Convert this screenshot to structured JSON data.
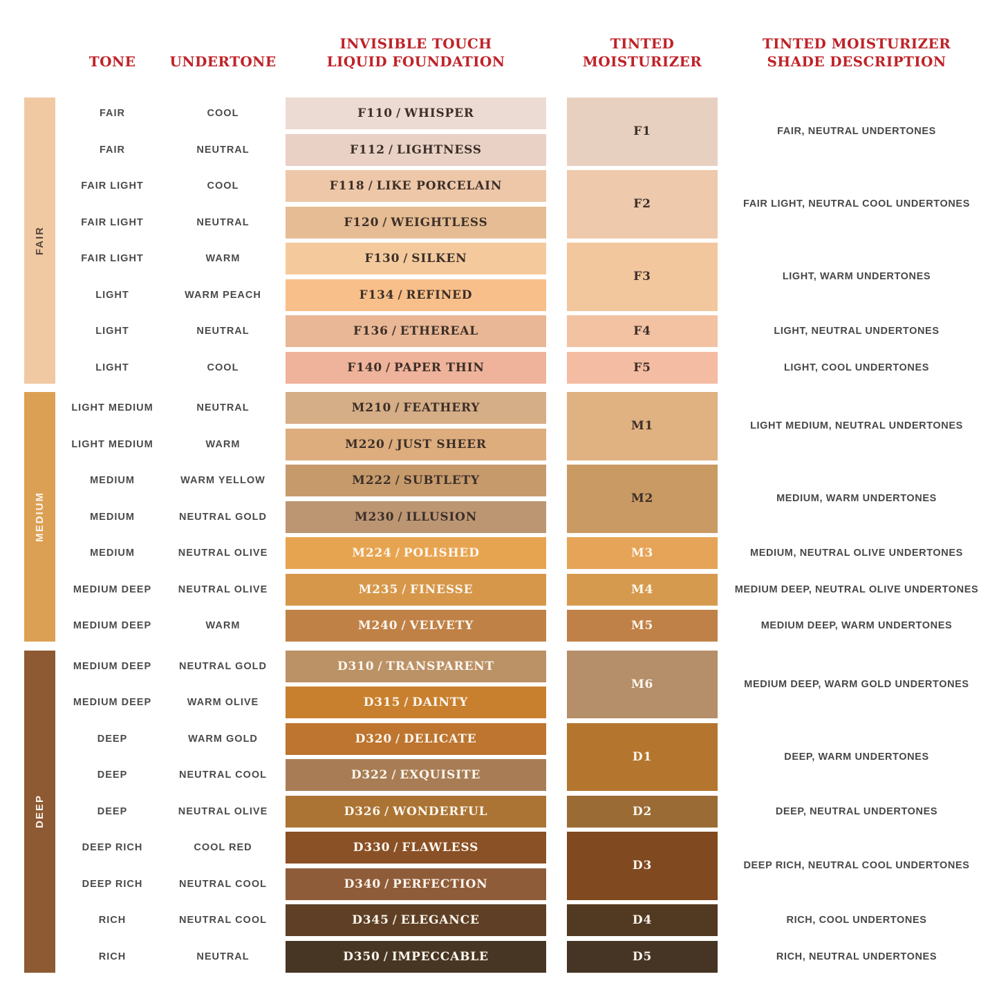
{
  "headers": {
    "tone": "TONE",
    "undertone": "UNDERTONE",
    "foundation_line1": "INVISIBLE TOUCH",
    "foundation_line2": "LIQUID FOUNDATION",
    "moisturizer_line1": "TINTED",
    "moisturizer_line2": "MOISTURIZER",
    "description_line1": "TINTED MOISTURIZER",
    "description_line2": "SHADE DESCRIPTION"
  },
  "colors": {
    "header_red": "#bf2228",
    "dark_label": "#4a4a4a",
    "swatch_dark_text": "#3c2f28",
    "swatch_light_text": "#fdf7ef"
  },
  "chart_data": {
    "type": "table",
    "separator": "/",
    "columns": [
      "TONE",
      "UNDERTONE",
      "INVISIBLE TOUCH LIQUID FOUNDATION",
      "TINTED MOISTURIZER",
      "TINTED MOISTURIZER SHADE DESCRIPTION"
    ],
    "tone_groups": [
      {
        "label": "FAIR",
        "color": "#f0c9a3",
        "label_color": "#54453e",
        "row_start": 0,
        "row_end": 7
      },
      {
        "label": "MEDIUM",
        "color": "#dca055",
        "label_color": "#fdf7ef",
        "row_start": 8,
        "row_end": 14
      },
      {
        "label": "DEEP",
        "color": "#8d5a33",
        "label_color": "#fdf7ef",
        "row_start": 15,
        "row_end": 23
      }
    ],
    "foundation_rows": [
      {
        "tone": "FAIR",
        "undertone": "COOL",
        "code": "F110",
        "name": "WHISPER",
        "color": "#ecdbd3",
        "label_color": "#3c2f28"
      },
      {
        "tone": "FAIR",
        "undertone": "NEUTRAL",
        "code": "F112",
        "name": "LIGHTNESS",
        "color": "#e9d1c5",
        "label_color": "#3c2f28"
      },
      {
        "tone": "FAIR LIGHT",
        "undertone": "COOL",
        "code": "F118",
        "name": "LIKE PORCELAIN",
        "color": "#eec7a9",
        "label_color": "#3c2f28"
      },
      {
        "tone": "FAIR LIGHT",
        "undertone": "NEUTRAL",
        "code": "F120",
        "name": "WEIGHTLESS",
        "color": "#e5bc93",
        "label_color": "#3c2f28"
      },
      {
        "tone": "FAIR LIGHT",
        "undertone": "WARM",
        "code": "F130",
        "name": "SILKEN",
        "color": "#f4ca9d",
        "label_color": "#3c2f28"
      },
      {
        "tone": "LIGHT",
        "undertone": "WARM PEACH",
        "code": "F134",
        "name": "REFINED",
        "color": "#f8bf8a",
        "label_color": "#3c2f28"
      },
      {
        "tone": "LIGHT",
        "undertone": "NEUTRAL",
        "code": "F136",
        "name": "ETHEREAL",
        "color": "#e9b795",
        "label_color": "#3c2f28"
      },
      {
        "tone": "LIGHT",
        "undertone": "COOL",
        "code": "F140",
        "name": "PAPER THIN",
        "color": "#eeb39a",
        "label_color": "#3c2f28"
      },
      {
        "tone": "LIGHT MEDIUM",
        "undertone": "NEUTRAL",
        "code": "M210",
        "name": "FEATHERY",
        "color": "#d5ad86",
        "label_color": "#3c2f28"
      },
      {
        "tone": "LIGHT MEDIUM",
        "undertone": "WARM",
        "code": "M220",
        "name": "JUST SHEER",
        "color": "#ddad7e",
        "label_color": "#3c2f28"
      },
      {
        "tone": "MEDIUM",
        "undertone": "WARM YELLOW",
        "code": "M222",
        "name": "SUBTLETY",
        "color": "#c79a6c",
        "label_color": "#3c2f28"
      },
      {
        "tone": "MEDIUM",
        "undertone": "NEUTRAL GOLD",
        "code": "M230",
        "name": "ILLUSION",
        "color": "#bc9673",
        "label_color": "#3c2f28"
      },
      {
        "tone": "MEDIUM",
        "undertone": "NEUTRAL OLIVE",
        "code": "M224",
        "name": "POLISHED",
        "color": "#e7a450",
        "label_color": "#fdf7ef"
      },
      {
        "tone": "MEDIUM DEEP",
        "undertone": "NEUTRAL OLIVE",
        "code": "M235",
        "name": "FINESSE",
        "color": "#d6974a",
        "label_color": "#fdf7ef"
      },
      {
        "tone": "MEDIUM DEEP",
        "undertone": "WARM",
        "code": "M240",
        "name": "VELVETY",
        "color": "#c08147",
        "label_color": "#fdf7ef"
      },
      {
        "tone": "MEDIUM DEEP",
        "undertone": "NEUTRAL GOLD",
        "code": "D310",
        "name": "TRANSPARENT",
        "color": "#bb9166",
        "label_color": "#fdf7ef"
      },
      {
        "tone": "MEDIUM DEEP",
        "undertone": "WARM OLIVE",
        "code": "D315",
        "name": "DAINTY",
        "color": "#c8802e",
        "label_color": "#fdf7ef"
      },
      {
        "tone": "DEEP",
        "undertone": "WARM GOLD",
        "code": "D320",
        "name": "DELICATE",
        "color": "#bd752f",
        "label_color": "#fdf7ef"
      },
      {
        "tone": "DEEP",
        "undertone": "NEUTRAL COOL",
        "code": "D322",
        "name": "EXQUISITE",
        "color": "#a87d55",
        "label_color": "#fdf7ef"
      },
      {
        "tone": "DEEP",
        "undertone": "NEUTRAL OLIVE",
        "code": "D326",
        "name": "WONDERFUL",
        "color": "#ab7434",
        "label_color": "#fdf7ef"
      },
      {
        "tone": "DEEP RICH",
        "undertone": "COOL RED",
        "code": "D330",
        "name": "FLAWLESS",
        "color": "#8a5026",
        "label_color": "#fdf7ef"
      },
      {
        "tone": "DEEP RICH",
        "undertone": "NEUTRAL COOL",
        "code": "D340",
        "name": "PERFECTION",
        "color": "#8f5c39",
        "label_color": "#fdf7ef"
      },
      {
        "tone": "RICH",
        "undertone": "NEUTRAL COOL",
        "code": "D345",
        "name": "ELEGANCE",
        "color": "#5f4026",
        "label_color": "#fdf7ef"
      },
      {
        "tone": "RICH",
        "undertone": "NEUTRAL",
        "code": "D350",
        "name": "IMPECCABLE",
        "color": "#483624",
        "label_color": "#fdf7ef"
      }
    ],
    "moisturizer_groups": [
      {
        "code": "F1",
        "color": "#e8d0c1",
        "label_color": "#3c2f28",
        "row_start": 0,
        "row_end": 1,
        "description": "FAIR, NEUTRAL UNDERTONES"
      },
      {
        "code": "F2",
        "color": "#eec9ab",
        "label_color": "#3c2f28",
        "row_start": 2,
        "row_end": 3,
        "description": "FAIR LIGHT, NEUTRAL COOL UNDERTONES"
      },
      {
        "code": "F3",
        "color": "#f3c79d",
        "label_color": "#3c2f28",
        "row_start": 4,
        "row_end": 5,
        "description": "LIGHT, WARM UNDERTONES"
      },
      {
        "code": "F4",
        "color": "#f2c2a3",
        "label_color": "#3c2f28",
        "row_start": 6,
        "row_end": 6,
        "description": "LIGHT, NEUTRAL UNDERTONES"
      },
      {
        "code": "F5",
        "color": "#f4bca3",
        "label_color": "#3c2f28",
        "row_start": 7,
        "row_end": 7,
        "description": "LIGHT, COOL UNDERTONES"
      },
      {
        "code": "M1",
        "color": "#e0b181",
        "label_color": "#3c2f28",
        "row_start": 8,
        "row_end": 9,
        "description": "LIGHT MEDIUM, NEUTRAL UNDERTONES"
      },
      {
        "code": "M2",
        "color": "#c99a64",
        "label_color": "#3c2f28",
        "row_start": 10,
        "row_end": 11,
        "description": "MEDIUM, WARM UNDERTONES"
      },
      {
        "code": "M3",
        "color": "#e5a457",
        "label_color": "#fdf7ef",
        "row_start": 12,
        "row_end": 12,
        "description": "MEDIUM, NEUTRAL OLIVE UNDERTONES"
      },
      {
        "code": "M4",
        "color": "#d69a4e",
        "label_color": "#fdf7ef",
        "row_start": 13,
        "row_end": 13,
        "description": "MEDIUM DEEP, NEUTRAL OLIVE UNDERTONES"
      },
      {
        "code": "M5",
        "color": "#c08148",
        "label_color": "#fdf7ef",
        "row_start": 14,
        "row_end": 14,
        "description": "MEDIUM DEEP, WARM UNDERTONES"
      },
      {
        "code": "M6",
        "color": "#b58f69",
        "label_color": "#fdf7ef",
        "row_start": 15,
        "row_end": 16,
        "description": "MEDIUM DEEP, WARM GOLD UNDERTONES"
      },
      {
        "code": "D1",
        "color": "#b4762f",
        "label_color": "#fdf7ef",
        "row_start": 17,
        "row_end": 18,
        "description": "DEEP, WARM UNDERTONES"
      },
      {
        "code": "D2",
        "color": "#9a6b35",
        "label_color": "#fdf7ef",
        "row_start": 19,
        "row_end": 19,
        "description": "DEEP, NEUTRAL UNDERTONES"
      },
      {
        "code": "D3",
        "color": "#80491f",
        "label_color": "#fdf7ef",
        "row_start": 20,
        "row_end": 21,
        "description": "DEEP RICH, NEUTRAL COOL UNDERTONES"
      },
      {
        "code": "D4",
        "color": "#523921",
        "label_color": "#fdf7ef",
        "row_start": 22,
        "row_end": 22,
        "description": "RICH, COOL UNDERTONES"
      },
      {
        "code": "D5",
        "color": "#463425",
        "label_color": "#fdf7ef",
        "row_start": 23,
        "row_end": 23,
        "description": "RICH, NEUTRAL UNDERTONES"
      }
    ]
  }
}
